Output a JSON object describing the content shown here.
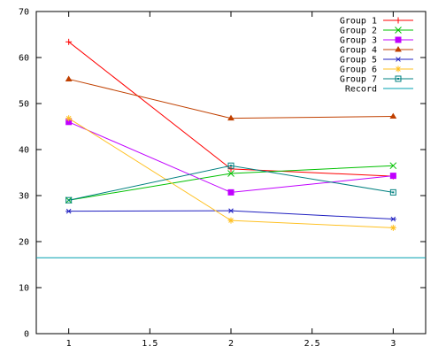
{
  "chart_data": {
    "type": "line",
    "xlim": [
      0.8,
      3.2
    ],
    "ylim": [
      0,
      70
    ],
    "x_ticks": [
      1,
      1.5,
      2,
      2.5,
      3
    ],
    "x_tick_labels": [
      "1",
      "1.5",
      "2",
      "2.5",
      "3"
    ],
    "y_ticks": [
      0,
      10,
      20,
      30,
      40,
      50,
      60,
      70
    ],
    "y_tick_labels": [
      "0",
      "10",
      "20",
      "30",
      "40",
      "50",
      "60",
      "70"
    ],
    "grid": false,
    "legend_position": "top-right",
    "series": [
      {
        "name": "Group 1",
        "color": "#ff0000",
        "marker": "plus",
        "x": [
          1,
          2,
          3
        ],
        "y": [
          63.4,
          35.8,
          34.2
        ]
      },
      {
        "name": "Group 2",
        "color": "#00c000",
        "marker": "cross",
        "x": [
          1,
          2,
          3
        ],
        "y": [
          29.0,
          34.8,
          36.5
        ]
      },
      {
        "name": "Group 3",
        "color": "#c000ff",
        "marker": "square",
        "x": [
          1,
          2,
          3
        ],
        "y": [
          46.0,
          30.7,
          34.3
        ]
      },
      {
        "name": "Group 4",
        "color": "#c04000",
        "marker": "triangle",
        "x": [
          1,
          2,
          3
        ],
        "y": [
          55.3,
          46.8,
          47.2
        ]
      },
      {
        "name": "Group 5",
        "color": "#2020c0",
        "marker": "star",
        "x": [
          1,
          2,
          3
        ],
        "y": [
          26.6,
          26.7,
          24.9
        ]
      },
      {
        "name": "Group 6",
        "color": "#ffc020",
        "marker": "asterisk",
        "x": [
          1,
          2,
          3
        ],
        "y": [
          46.8,
          24.6,
          23.0
        ]
      },
      {
        "name": "Group 7",
        "color": "#008080",
        "marker": "boxdot",
        "x": [
          1,
          2,
          3
        ],
        "y": [
          29.0,
          36.5,
          30.7
        ]
      }
    ],
    "record": {
      "name": "Record",
      "color": "#00a0b0",
      "y": 16.5
    }
  }
}
